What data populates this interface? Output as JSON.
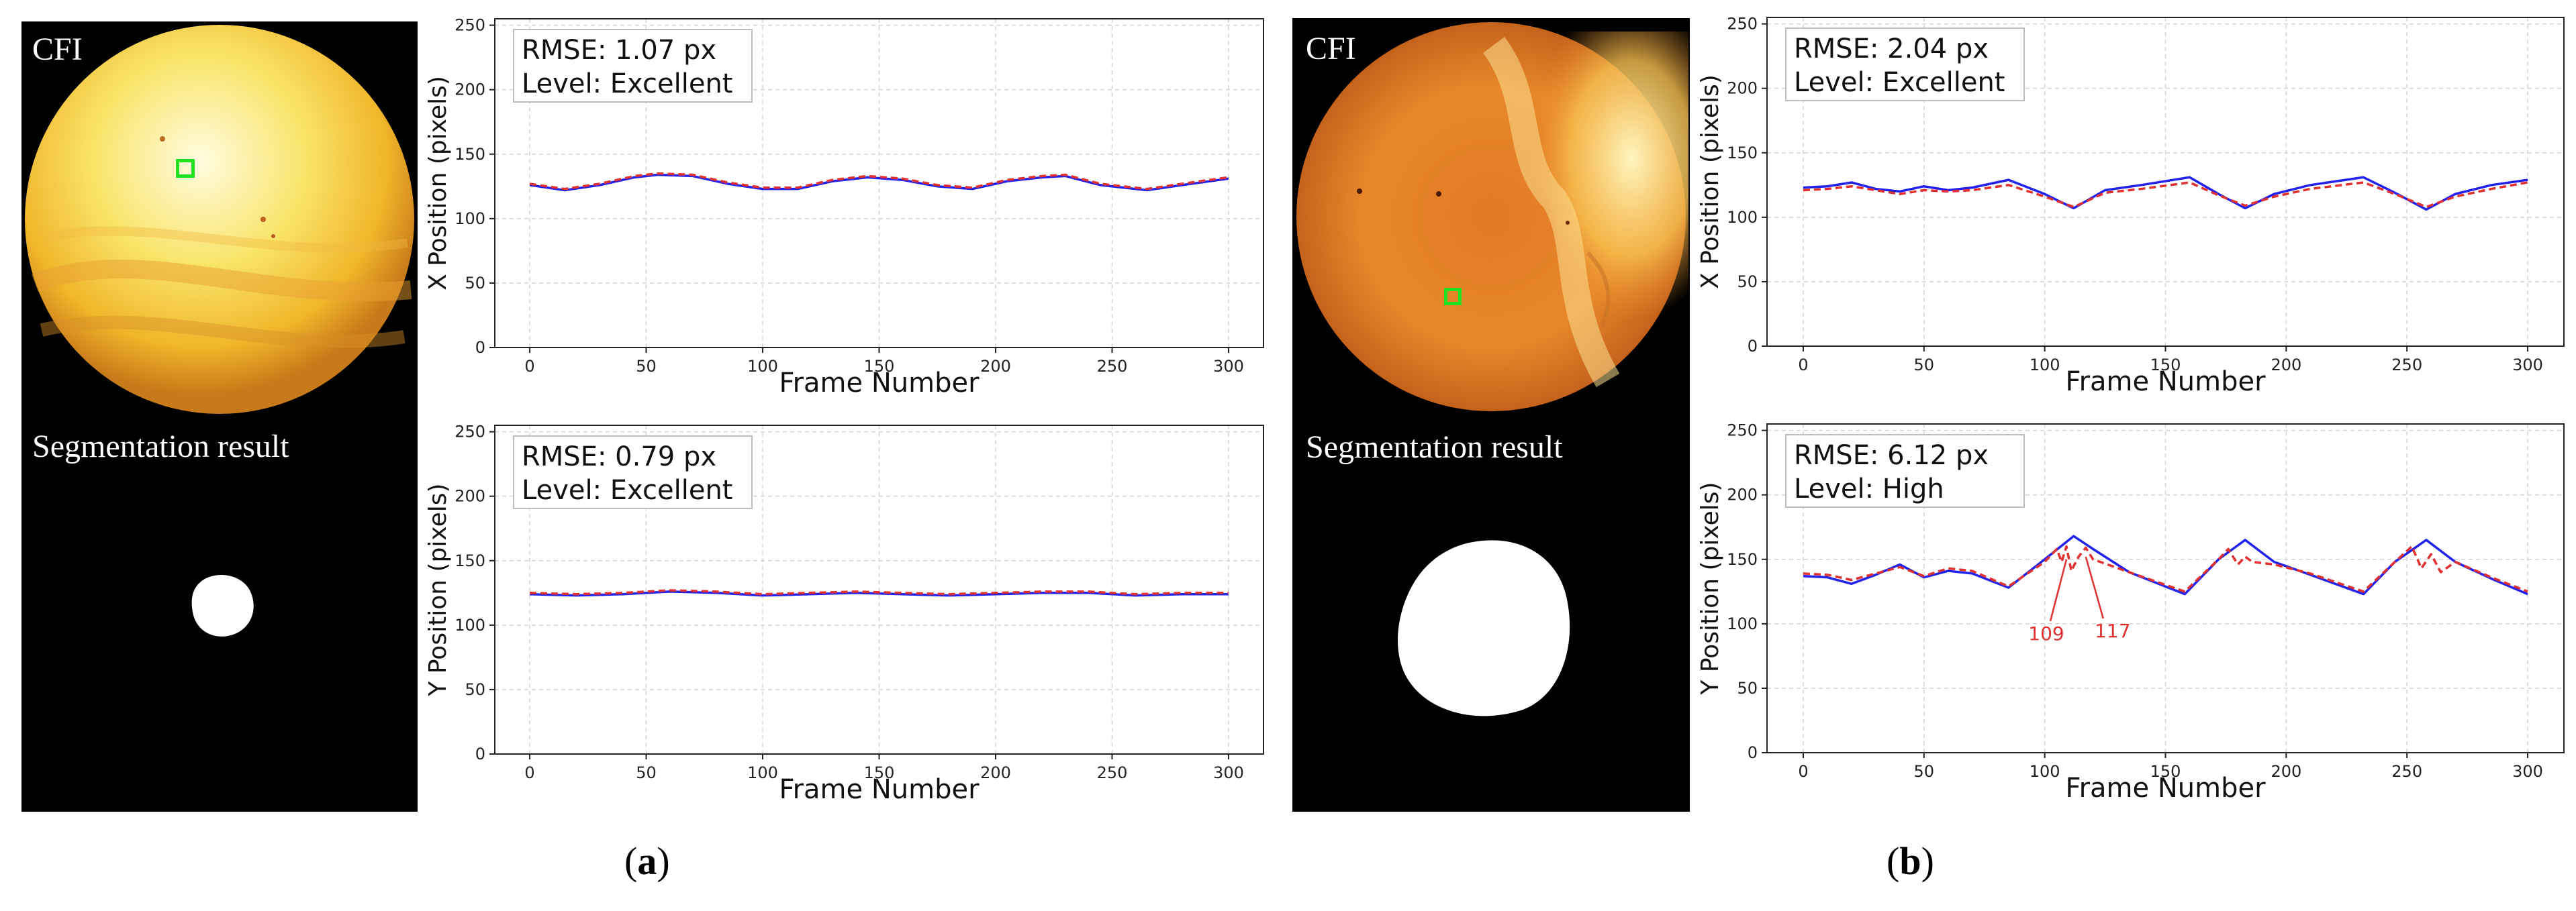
{
  "panels": [
    {
      "id": "a",
      "caption_letter": "a",
      "cfi_label": "CFI",
      "seg_label": "Segmentation result",
      "colors": {
        "fundus": "#f6d12a",
        "marker": "#22e022"
      }
    },
    {
      "id": "b",
      "caption_letter": "b",
      "cfi_label": "CFI",
      "seg_label": "Segmentation result",
      "colors": {
        "fundus": "#e68a22",
        "marker": "#22e022"
      }
    }
  ],
  "chart_data": [
    {
      "id": "a-x",
      "type": "line",
      "ylabel": "X Position (pixels)",
      "xlabel": "Frame Number",
      "xlim": [
        -15,
        315
      ],
      "ylim": [
        0,
        255
      ],
      "xticks": [
        0,
        50,
        100,
        150,
        200,
        250,
        300
      ],
      "yticks": [
        0,
        50,
        100,
        150,
        200,
        250
      ],
      "grid": true,
      "annotation": {
        "line1": "RMSE: 1.07 px",
        "line2": "Level: Excellent"
      },
      "series": [
        {
          "color": "#2222ee",
          "style": "solid",
          "x": [
            0,
            15,
            30,
            45,
            55,
            70,
            85,
            100,
            115,
            130,
            145,
            160,
            175,
            190,
            205,
            220,
            230,
            245,
            265,
            280,
            300
          ],
          "y": [
            126,
            122,
            126,
            132,
            134,
            133,
            127,
            123,
            123,
            129,
            132,
            130,
            125,
            123,
            129,
            132,
            133,
            126,
            122,
            126,
            131
          ]
        },
        {
          "color": "#e03030",
          "style": "dashed",
          "x": [
            0,
            15,
            30,
            45,
            55,
            70,
            85,
            100,
            115,
            130,
            145,
            160,
            175,
            190,
            205,
            220,
            230,
            245,
            265,
            280,
            300
          ],
          "y": [
            127,
            123,
            127,
            133,
            135,
            134,
            128,
            124,
            124,
            130,
            133,
            131,
            126,
            124,
            130,
            133,
            134,
            127,
            123,
            127,
            132
          ]
        }
      ]
    },
    {
      "id": "a-y",
      "type": "line",
      "ylabel": "Y Position (pixels)",
      "xlabel": "Frame Number",
      "xlim": [
        -15,
        315
      ],
      "ylim": [
        0,
        255
      ],
      "xticks": [
        0,
        50,
        100,
        150,
        200,
        250,
        300
      ],
      "yticks": [
        0,
        50,
        100,
        150,
        200,
        250
      ],
      "grid": true,
      "annotation": {
        "line1": "RMSE: 0.79 px",
        "line2": "Level: Excellent"
      },
      "series": [
        {
          "color": "#2222ee",
          "style": "solid",
          "x": [
            0,
            20,
            40,
            60,
            80,
            100,
            120,
            140,
            160,
            180,
            200,
            220,
            240,
            260,
            280,
            300
          ],
          "y": [
            124,
            123,
            124,
            126,
            125,
            123,
            124,
            125,
            124,
            123,
            124,
            125,
            125,
            123,
            124,
            124
          ]
        },
        {
          "color": "#e03030",
          "style": "dashed",
          "x": [
            0,
            20,
            40,
            60,
            80,
            100,
            120,
            140,
            160,
            180,
            200,
            220,
            240,
            260,
            280,
            300
          ],
          "y": [
            125,
            124,
            125,
            127,
            126,
            124,
            125,
            126,
            125,
            124,
            125,
            126,
            126,
            124,
            125,
            125
          ]
        }
      ]
    },
    {
      "id": "b-x",
      "type": "line",
      "ylabel": "X Position (pixels)",
      "xlabel": "Frame Number",
      "xlim": [
        -15,
        315
      ],
      "ylim": [
        0,
        255
      ],
      "xticks": [
        0,
        50,
        100,
        150,
        200,
        250,
        300
      ],
      "yticks": [
        0,
        50,
        100,
        150,
        200,
        250
      ],
      "grid": true,
      "annotation": {
        "line1": "RMSE: 2.04 px",
        "line2": "Level: Excellent"
      },
      "series": [
        {
          "color": "#2222ee",
          "style": "solid",
          "x": [
            0,
            10,
            20,
            30,
            40,
            50,
            60,
            70,
            85,
            100,
            112,
            125,
            140,
            160,
            172,
            183,
            195,
            210,
            232,
            245,
            258,
            270,
            285,
            300
          ],
          "y": [
            123,
            124,
            127,
            122,
            120,
            124,
            121,
            123,
            129,
            118,
            107,
            121,
            125,
            131,
            118,
            107,
            118,
            125,
            131,
            119,
            106,
            118,
            125,
            129
          ]
        },
        {
          "color": "#e03030",
          "style": "dashed",
          "x": [
            0,
            10,
            20,
            30,
            40,
            50,
            60,
            70,
            85,
            100,
            112,
            125,
            140,
            160,
            172,
            183,
            195,
            210,
            232,
            245,
            258,
            270,
            285,
            300
          ],
          "y": [
            121,
            122,
            124,
            121,
            118,
            121,
            120,
            121,
            125,
            116,
            108,
            119,
            122,
            127,
            117,
            109,
            116,
            122,
            127,
            118,
            108,
            116,
            122,
            127
          ]
        }
      ]
    },
    {
      "id": "b-y",
      "type": "line",
      "ylabel": "Y Position (pixels)",
      "xlabel": "Frame Number",
      "xlim": [
        -15,
        315
      ],
      "ylim": [
        0,
        255
      ],
      "xticks": [
        0,
        50,
        100,
        150,
        200,
        250,
        300
      ],
      "yticks": [
        0,
        50,
        100,
        150,
        200,
        250
      ],
      "grid": true,
      "annotation": {
        "line1": "RMSE: 6.12 px",
        "line2": "Level: High"
      },
      "callouts": [
        {
          "label": "109",
          "x": 109,
          "y": 150
        },
        {
          "label": "117",
          "x": 117,
          "y": 152
        }
      ],
      "series": [
        {
          "color": "#2222ee",
          "style": "solid",
          "x": [
            0,
            10,
            20,
            30,
            40,
            50,
            60,
            70,
            85,
            100,
            112,
            120,
            135,
            158,
            172,
            183,
            195,
            210,
            232,
            245,
            258,
            270,
            285,
            300
          ],
          "y": [
            137,
            136,
            131,
            138,
            146,
            136,
            141,
            139,
            128,
            150,
            168,
            158,
            140,
            123,
            150,
            165,
            148,
            138,
            123,
            148,
            165,
            148,
            135,
            123
          ]
        },
        {
          "color": "#e03030",
          "style": "dashed",
          "x": [
            0,
            10,
            20,
            30,
            40,
            50,
            60,
            70,
            85,
            100,
            105,
            107,
            109,
            111,
            114,
            117,
            120,
            135,
            158,
            172,
            176,
            180,
            183,
            186,
            195,
            210,
            232,
            245,
            252,
            256,
            260,
            264,
            270,
            285,
            300
          ],
          "y": [
            139,
            138,
            134,
            139,
            144,
            137,
            143,
            141,
            129,
            148,
            158,
            148,
            160,
            141,
            152,
            159,
            150,
            140,
            125,
            150,
            158,
            146,
            152,
            148,
            146,
            139,
            125,
            148,
            160,
            143,
            154,
            140,
            148,
            136,
            125
          ]
        }
      ]
    }
  ]
}
